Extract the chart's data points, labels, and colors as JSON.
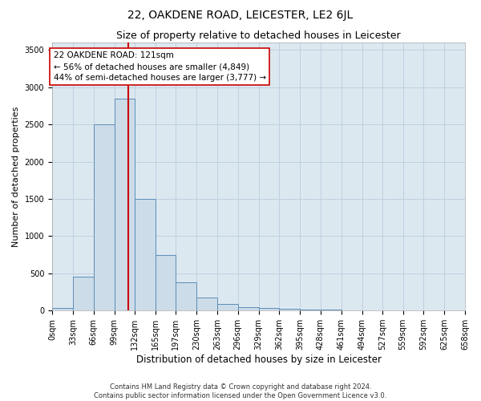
{
  "title": "22, OAKDENE ROAD, LEICESTER, LE2 6JL",
  "subtitle": "Size of property relative to detached houses in Leicester",
  "xlabel": "Distribution of detached houses by size in Leicester",
  "ylabel": "Number of detached properties",
  "bin_edges": [
    0,
    33,
    66,
    99,
    132,
    165,
    197,
    230,
    263,
    296,
    329,
    362,
    395,
    428,
    461,
    494,
    527,
    559,
    592,
    625,
    658
  ],
  "bar_heights": [
    30,
    450,
    2500,
    2850,
    1500,
    750,
    380,
    175,
    90,
    50,
    30,
    20,
    15,
    10,
    5,
    5,
    5,
    5,
    5,
    3
  ],
  "bar_color": "#ccdce8",
  "bar_edge_color": "#5b8db8",
  "property_value": 121,
  "vline_color": "#cc0000",
  "annotation_text": "22 OAKDENE ROAD: 121sqm\n← 56% of detached houses are smaller (4,849)\n44% of semi-detached houses are larger (3,777) →",
  "annotation_box_facecolor": "#ffffff",
  "annotation_box_edgecolor": "#cc0000",
  "ylim": [
    0,
    3600
  ],
  "yticks": [
    0,
    500,
    1000,
    1500,
    2000,
    2500,
    3000,
    3500
  ],
  "grid_color": "#c0d0e0",
  "bg_color": "#dce8f0",
  "footer_line1": "Contains HM Land Registry data © Crown copyright and database right 2024.",
  "footer_line2": "Contains public sector information licensed under the Open Government Licence v3.0.",
  "title_fontsize": 10,
  "subtitle_fontsize": 9,
  "xlabel_fontsize": 8.5,
  "ylabel_fontsize": 8,
  "tick_fontsize": 7,
  "annotation_fontsize": 7.5,
  "footer_fontsize": 6
}
